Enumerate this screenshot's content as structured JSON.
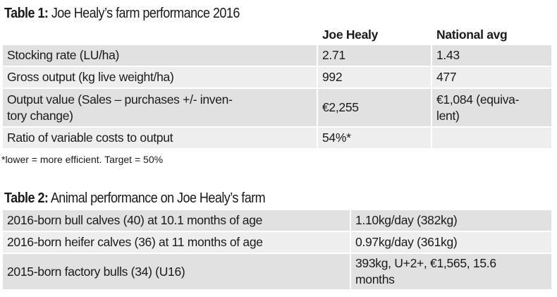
{
  "table1": {
    "title_label": "Table 1:",
    "title_text": "Joe Healy’s farm performance 2016",
    "headers": [
      "",
      "Joe Healy",
      "National avg"
    ],
    "rows": [
      [
        "Stocking rate (LU/ha)",
        "2.71",
        "1.43"
      ],
      [
        "Gross output (kg live weight/ha)",
        "992",
        "477"
      ],
      [
        "Output value (Sales – purchases +/- inven-\ntory change)",
        "€2,255",
        "€1,084 (equiva-\nlent)"
      ],
      [
        "Ratio of variable costs to output",
        "54%*",
        ""
      ]
    ],
    "footnote": "*lower = more efficient. Target = 50%"
  },
  "table2": {
    "title_label": "Table 2:",
    "title_text": "Animal performance on Joe Healy’s farm",
    "rows": [
      [
        "2016-born bull calves (40) at 10.1 months of age",
        "1.10kg/day (382kg)"
      ],
      [
        "2016-born heifer calves (36) at 11 months of age",
        "0.97kg/day (361kg)"
      ],
      [
        "2015-born factory bulls (34) (U16)",
        "393kg, U+2+, €1,565, 15.6\nmonths"
      ]
    ]
  }
}
